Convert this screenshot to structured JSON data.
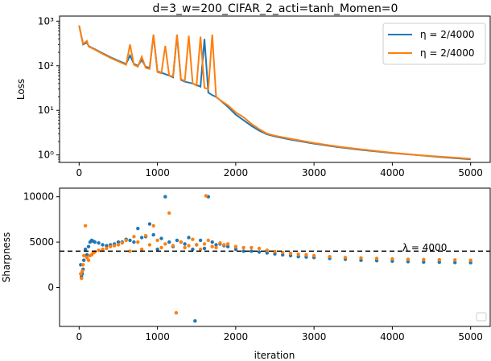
{
  "chart_data": [
    {
      "type": "line",
      "title": "d=3_w=200_CIFAR_2_acti=tanh_Momen=0",
      "xlabel": "",
      "ylabel": "Loss",
      "yscale": "log",
      "xlim": [
        -250,
        5250
      ],
      "ylim": [
        0.68,
        1300
      ],
      "xticks": [
        0,
        1000,
        2000,
        3000,
        4000,
        5000
      ],
      "xtick_labels": [
        "0",
        "1000",
        "2000",
        "3000",
        "4000",
        "5000"
      ],
      "yticks": [
        1,
        10,
        100,
        1000
      ],
      "ytick_labels": [
        "10⁰",
        "10¹",
        "10²",
        "10³"
      ],
      "grid": false,
      "legend_position": "top-right",
      "colors": [
        "#1f77b4",
        "#ff7f0e"
      ],
      "series": [
        {
          "name": "η = 2/4000",
          "x": [
            0,
            50,
            100,
            120,
            150,
            200,
            300,
            400,
            500,
            600,
            650,
            700,
            750,
            800,
            850,
            900,
            950,
            1000,
            1050,
            1100,
            1150,
            1200,
            1250,
            1300,
            1350,
            1400,
            1450,
            1500,
            1550,
            1600,
            1650,
            1700,
            1750,
            1800,
            1900,
            2000,
            2100,
            2200,
            2300,
            2400,
            2500,
            2700,
            3000,
            3300,
            3600,
            4000,
            4300,
            4600,
            5000
          ],
          "y": [
            800,
            300,
            330,
            280,
            260,
            235,
            190,
            155,
            130,
            110,
            170,
            110,
            100,
            135,
            95,
            90,
            480,
            75,
            70,
            65,
            60,
            55,
            480,
            48,
            44,
            42,
            40,
            37,
            34,
            400,
            25,
            22,
            20,
            17,
            12,
            8.0,
            6.0,
            4.5,
            3.5,
            2.9,
            2.6,
            2.2,
            1.8,
            1.5,
            1.3,
            1.1,
            1.0,
            0.9,
            0.8
          ]
        },
        {
          "name": "η = 2/4000",
          "x": [
            0,
            50,
            100,
            120,
            150,
            200,
            300,
            400,
            500,
            600,
            650,
            700,
            750,
            800,
            850,
            900,
            950,
            1000,
            1050,
            1100,
            1150,
            1200,
            1250,
            1300,
            1350,
            1400,
            1450,
            1500,
            1550,
            1600,
            1650,
            1700,
            1750,
            1800,
            1900,
            2000,
            2100,
            2200,
            2300,
            2400,
            2500,
            2700,
            3000,
            3300,
            3600,
            4000,
            4300,
            4600,
            5000
          ],
          "y": [
            800,
            310,
            360,
            270,
            255,
            230,
            185,
            150,
            125,
            105,
            300,
            105,
            95,
            160,
            90,
            85,
            500,
            72,
            68,
            280,
            60,
            58,
            500,
            50,
            46,
            470,
            40,
            36,
            450,
            32,
            30,
            500,
            20,
            17,
            13,
            9.0,
            7.0,
            5.0,
            3.8,
            3.0,
            2.7,
            2.3,
            1.85,
            1.55,
            1.33,
            1.12,
            1.0,
            0.92,
            0.82
          ]
        }
      ]
    },
    {
      "type": "scatter",
      "title": "",
      "xlabel": "iteration",
      "ylabel": "Sharpness",
      "xlim": [
        -250,
        5250
      ],
      "ylim": [
        -4300,
        10950
      ],
      "xticks": [
        0,
        1000,
        2000,
        3000,
        4000,
        5000
      ],
      "xtick_labels": [
        "0",
        "1000",
        "2000",
        "3000",
        "4000",
        "5000"
      ],
      "yticks": [
        0,
        5000,
        10000
      ],
      "ytick_labels": [
        "0",
        "5000",
        "10000"
      ],
      "grid": false,
      "legend_position": "bottom-right",
      "reference_line": {
        "y": 4000,
        "label": "λ = 4000"
      },
      "colors": [
        "#1f77b4",
        "#ff7f0e"
      ],
      "series": [
        {
          "x": [
            20,
            30,
            40,
            50,
            60,
            80,
            100,
            120,
            140,
            160,
            180,
            200,
            250,
            300,
            350,
            400,
            450,
            500,
            550,
            600,
            650,
            700,
            750,
            800,
            850,
            900,
            950,
            1000,
            1050,
            1100,
            1150,
            1200,
            1250,
            1300,
            1350,
            1400,
            1450,
            1480,
            1500,
            1550,
            1600,
            1650,
            1700,
            1750,
            1800,
            1850,
            1900,
            2000,
            2100,
            2200,
            2300,
            2400,
            2500,
            2600,
            2700,
            2800,
            2900,
            3000,
            3200,
            3400,
            3600,
            3800,
            4000,
            4200,
            4400,
            4600,
            4800,
            5000
          ],
          "y": [
            2500,
            1200,
            1500,
            2000,
            3000,
            4200,
            3600,
            4500,
            5000,
            5200,
            5100,
            5000,
            4900,
            4700,
            4600,
            4700,
            4800,
            5000,
            5000,
            5300,
            5200,
            5000,
            6500,
            5500,
            5600,
            7000,
            5800,
            4200,
            5400,
            10000,
            5000,
            4500,
            5200,
            5000,
            4800,
            5500,
            4200,
            -3700,
            4700,
            5200,
            4300,
            10000,
            5000,
            4700,
            4800,
            4600,
            4500,
            4200,
            4000,
            4000,
            3900,
            3800,
            3700,
            3600,
            3500,
            3400,
            3350,
            3300,
            3200,
            3100,
            3000,
            2950,
            2900,
            2850,
            2800,
            2780,
            2750,
            2730
          ]
        },
        {
          "x": [
            20,
            30,
            40,
            50,
            60,
            80,
            100,
            120,
            140,
            160,
            180,
            200,
            250,
            300,
            350,
            400,
            450,
            500,
            550,
            600,
            650,
            700,
            750,
            800,
            850,
            900,
            950,
            1000,
            1050,
            1100,
            1150,
            1200,
            1240,
            1300,
            1350,
            1400,
            1450,
            1500,
            1550,
            1600,
            1620,
            1650,
            1700,
            1750,
            1800,
            1850,
            1900,
            2000,
            2100,
            2200,
            2300,
            2400,
            2500,
            2600,
            2700,
            2800,
            2900,
            3000,
            3200,
            3400,
            3600,
            3800,
            4000,
            4200,
            4400,
            4600,
            4800,
            5000
          ],
          "y": [
            1500,
            1000,
            1800,
            2500,
            3500,
            6800,
            3300,
            3000,
            3500,
            3600,
            3800,
            3900,
            4100,
            4200,
            4300,
            4500,
            4600,
            4700,
            4900,
            5200,
            4000,
            5600,
            5000,
            4200,
            5700,
            4700,
            6800,
            5200,
            4400,
            4800,
            8200,
            4600,
            -2800,
            5000,
            4400,
            4600,
            5300,
            4700,
            4200,
            4800,
            10100,
            5200,
            4500,
            4400,
            4900,
            4700,
            4800,
            4500,
            4400,
            4400,
            4300,
            4100,
            3950,
            3850,
            3750,
            3650,
            3600,
            3500,
            3400,
            3300,
            3250,
            3200,
            3150,
            3100,
            3080,
            3050,
            3030,
            3000
          ]
        }
      ]
    }
  ]
}
